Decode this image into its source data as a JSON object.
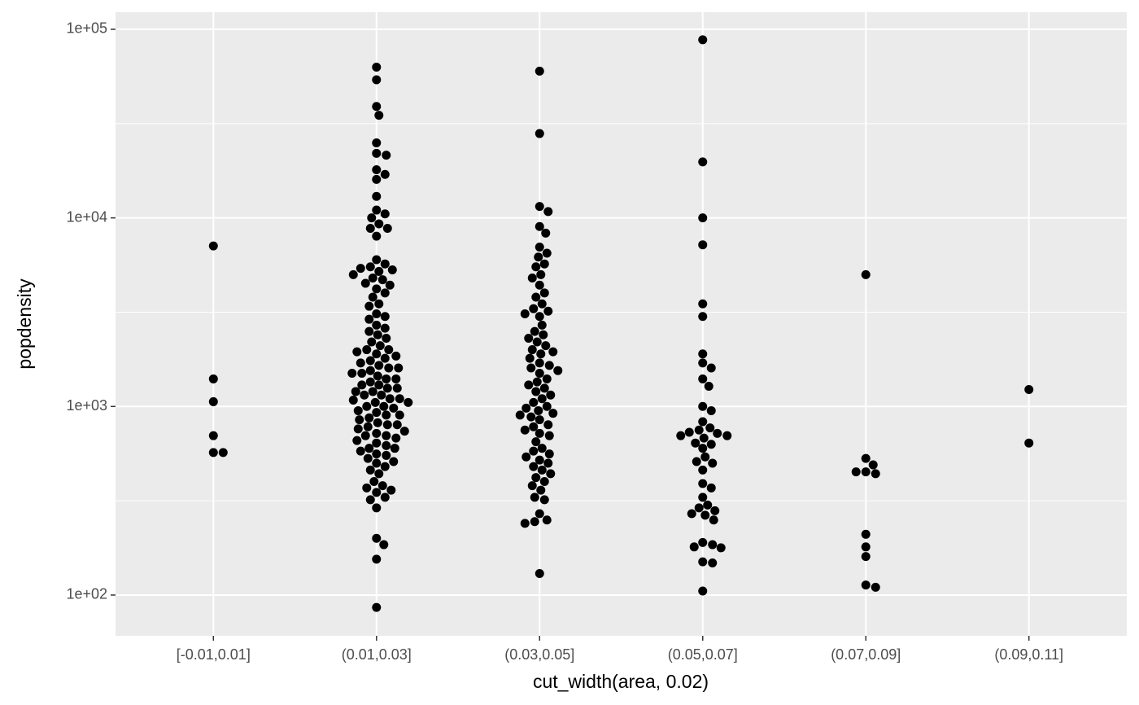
{
  "chart_data": {
    "type": "scatter",
    "x_label": "cut_width(area, 0.02)",
    "y_label": "popdensity",
    "log_y": true,
    "grid": true,
    "color": "#000000",
    "categories": [
      "[-0.01,0.01]",
      "(0.01,0.03]",
      "(0.03,0.05]",
      "(0.05,0.07]",
      "(0.07,0.09]",
      "(0.09,0.11]"
    ],
    "ylim": [
      60.8,
      123200
    ],
    "yticks": [
      {
        "value": 100,
        "label": "1e+02"
      },
      {
        "value": 1000,
        "label": "1e+03"
      },
      {
        "value": 10000,
        "label": "1e+04"
      },
      {
        "value": 100000,
        "label": "1e+05"
      }
    ],
    "values": [
      [
        7100,
        1400,
        1060,
        700,
        570,
        570
      ],
      [
        63000,
        54000,
        39000,
        35000,
        25000,
        22000,
        21500,
        18000,
        17000,
        16000,
        13000,
        11000,
        10500,
        10000,
        9300,
        8800,
        8800,
        8000,
        6000,
        5700,
        5500,
        5400,
        5300,
        5200,
        5000,
        4800,
        4700,
        4500,
        4400,
        4200,
        4000,
        3800,
        3500,
        3400,
        3100,
        3000,
        2900,
        2700,
        2600,
        2500,
        2400,
        2300,
        2200,
        2100,
        2000,
        2000,
        1950,
        1900,
        1850,
        1800,
        1750,
        1700,
        1650,
        1600,
        1600,
        1550,
        1500,
        1500,
        1450,
        1400,
        1400,
        1350,
        1300,
        1300,
        1250,
        1250,
        1200,
        1200,
        1150,
        1150,
        1100,
        1100,
        1080,
        1050,
        1050,
        1000,
        1000,
        980,
        950,
        930,
        900,
        900,
        870,
        850,
        820,
        800,
        800,
        780,
        760,
        740,
        720,
        700,
        700,
        680,
        660,
        640,
        620,
        600,
        600,
        580,
        560,
        550,
        530,
        510,
        500,
        480,
        460,
        440,
        400,
        380,
        370,
        360,
        350,
        330,
        320,
        290,
        200,
        185,
        155,
        86
      ],
      [
        60000,
        28000,
        11500,
        10800,
        9000,
        8300,
        7000,
        6500,
        6200,
        5700,
        5500,
        5000,
        4800,
        4400,
        4000,
        3800,
        3500,
        3300,
        3200,
        3100,
        3000,
        2700,
        2500,
        2400,
        2300,
        2200,
        2100,
        2000,
        1950,
        1900,
        1800,
        1700,
        1650,
        1600,
        1550,
        1500,
        1400,
        1350,
        1300,
        1250,
        1200,
        1150,
        1100,
        1050,
        1000,
        980,
        950,
        920,
        900,
        880,
        850,
        800,
        780,
        750,
        720,
        700,
        650,
        600,
        580,
        560,
        540,
        520,
        500,
        480,
        460,
        440,
        420,
        400,
        380,
        360,
        330,
        320,
        270,
        250,
        245,
        240,
        130
      ],
      [
        88000,
        19800,
        10000,
        7200,
        3500,
        3000,
        1900,
        1700,
        1600,
        1400,
        1280,
        1000,
        950,
        830,
        770,
        750,
        730,
        720,
        700,
        700,
        680,
        640,
        630,
        600,
        540,
        510,
        500,
        460,
        390,
        370,
        330,
        300,
        290,
        280,
        270,
        265,
        250,
        190,
        185,
        180,
        178,
        150,
        148,
        105
      ],
      [
        5000,
        530,
        490,
        450,
        450,
        440,
        210,
        180,
        160,
        113,
        110
      ],
      [
        1230,
        640
      ]
    ]
  }
}
